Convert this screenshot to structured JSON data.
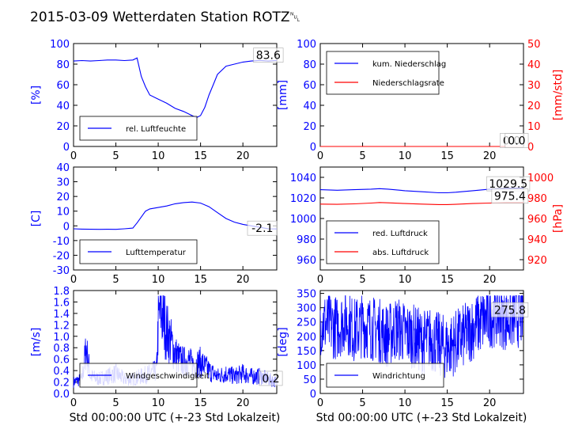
{
  "title": "2015-03-09 Wetterdaten Station ROTZ␀",
  "xlabel": "Std 00:00:00 UTC (+-23 Std Lokalzeit)",
  "colors": {
    "left": "#0000ff",
    "right": "#ff0000",
    "axis": "#000000"
  },
  "chart_data": [
    {
      "type": "line",
      "id": "humidity",
      "ylabel": "[%]",
      "xlim": [
        0,
        24
      ],
      "ylim": [
        0,
        100
      ],
      "xticks": [
        0,
        5,
        10,
        15,
        20
      ],
      "yticks": [
        0,
        20,
        40,
        60,
        80,
        100
      ],
      "legend_position": "lower-left",
      "series": [
        {
          "name": "rel. Luftfeuchte",
          "color": "#0000ff",
          "x": [
            0,
            1,
            2,
            3,
            4,
            5,
            6,
            7,
            7.5,
            8,
            8.5,
            9,
            10,
            11,
            12,
            13,
            14,
            14.5,
            15,
            15.5,
            16,
            16.5,
            17,
            18,
            19,
            20,
            21,
            22,
            23,
            24
          ],
          "y": [
            83,
            83.5,
            83,
            83.5,
            84,
            84,
            83.5,
            84,
            86,
            68,
            58,
            50,
            46,
            42,
            37,
            34,
            30,
            28,
            30,
            38,
            50,
            60,
            70,
            78,
            80,
            82,
            83,
            83.6,
            83,
            83.6
          ]
        }
      ],
      "annotations": [
        {
          "text": "83.6",
          "x": 23,
          "y": 88
        }
      ]
    },
    {
      "type": "line",
      "id": "precipitation",
      "ylabel": "[mm]",
      "ylabel_right": "[mm/std]",
      "xlim": [
        0,
        24
      ],
      "ylim": [
        0,
        100
      ],
      "ylim_right": [
        0,
        50
      ],
      "xticks": [
        0,
        5,
        10,
        15,
        20
      ],
      "yticks": [
        0,
        20,
        40,
        60,
        80,
        100
      ],
      "yticks_right": [
        0,
        10,
        20,
        30,
        40,
        50
      ],
      "legend_position": "upper-left",
      "series": [
        {
          "name": "kum. Niederschlag",
          "color": "#0000ff",
          "x": [
            0,
            24
          ],
          "y": [
            0,
            0
          ]
        },
        {
          "name": "Niederschlagsrate",
          "color": "#ff0000",
          "axis": "right",
          "x": [
            0,
            24
          ],
          "y": [
            0,
            0
          ]
        }
      ],
      "annotations": [
        {
          "text": "0.0",
          "x": 22.6,
          "y": 5
        },
        {
          "text": "0.0",
          "x": 23.2,
          "y": 5
        }
      ]
    },
    {
      "type": "line",
      "id": "temperature",
      "ylabel": "[C]",
      "xlim": [
        0,
        24
      ],
      "ylim": [
        -30,
        40
      ],
      "xticks": [
        0,
        5,
        10,
        15,
        20
      ],
      "yticks": [
        -30,
        -20,
        -10,
        0,
        10,
        20,
        30,
        40
      ],
      "legend_position": "lower-left",
      "series": [
        {
          "name": "Lufttemperatur",
          "color": "#0000ff",
          "x": [
            0,
            1,
            2,
            3,
            4,
            5,
            6,
            7,
            7.5,
            8,
            8.5,
            9,
            10,
            11,
            12,
            13,
            14,
            15,
            16,
            17,
            18,
            19,
            20,
            21,
            22,
            23,
            24
          ],
          "y": [
            -2,
            -2.2,
            -2.3,
            -2.4,
            -2.3,
            -2.4,
            -2,
            -1.5,
            2,
            6,
            10,
            11.5,
            12.5,
            13.5,
            15,
            15.8,
            16.2,
            15.5,
            13,
            9,
            5,
            2.5,
            1,
            0,
            -1,
            -2,
            -2.1
          ]
        }
      ],
      "annotations": [
        {
          "text": "-2.1",
          "x": 22.3,
          "y": -2.1
        }
      ]
    },
    {
      "type": "line",
      "id": "pressure",
      "ylabel": "",
      "ylabel_right": "[hPa]",
      "xlim": [
        0,
        24
      ],
      "ylim": [
        950,
        1050
      ],
      "ylim_right": [
        910,
        1010
      ],
      "xticks": [
        0,
        5,
        10,
        15,
        20
      ],
      "yticks": [
        960,
        980,
        1000,
        1020,
        1040
      ],
      "yticks_right": [
        920,
        940,
        960,
        980,
        1000
      ],
      "legend_position": "lower-left",
      "series": [
        {
          "name": "red. Luftdruck",
          "color": "#0000ff",
          "x": [
            0,
            2,
            4,
            6,
            7,
            8,
            10,
            12,
            14,
            15,
            16,
            18,
            20,
            22,
            24
          ],
          "y": [
            1028,
            1027.5,
            1028,
            1028.5,
            1029,
            1028.5,
            1027,
            1026,
            1025,
            1025,
            1025.5,
            1027,
            1028.5,
            1029.3,
            1029.5
          ]
        },
        {
          "name": "abs. Luftdruck",
          "color": "#ff0000",
          "axis": "right",
          "x": [
            0,
            2,
            4,
            6,
            7,
            8,
            10,
            12,
            14,
            15,
            16,
            18,
            20,
            22,
            24
          ],
          "y": [
            974,
            973.8,
            974.2,
            975,
            975.5,
            975.2,
            974.5,
            974,
            973.5,
            973.5,
            973.8,
            974.5,
            975,
            975.3,
            975.4
          ]
        }
      ],
      "annotations": [
        {
          "text": "1029.5",
          "x": 22.2,
          "y": 1033
        },
        {
          "text": "975.4",
          "x": 22.4,
          "y": 1021
        }
      ]
    },
    {
      "type": "line",
      "id": "wind_speed",
      "ylabel": "[m/s]",
      "xlim": [
        0,
        24
      ],
      "ylim": [
        0,
        1.8
      ],
      "xticks": [
        0,
        5,
        10,
        15,
        20
      ],
      "yticks": [
        0.0,
        0.2,
        0.4,
        0.6,
        0.8,
        1.0,
        1.2,
        1.4,
        1.6,
        1.8
      ],
      "legend_position": "lower-left",
      "series": [
        {
          "name": "Windgeschwindigkeit",
          "color": "#0000ff",
          "noisy": true,
          "x": [
            0,
            1,
            1.5,
            2,
            3,
            4,
            5,
            6,
            7,
            8,
            9,
            9.8,
            10,
            10.3,
            10.6,
            11,
            11.5,
            12,
            12.5,
            13,
            13.5,
            14,
            15,
            16,
            17,
            18,
            19,
            20,
            21,
            22,
            23,
            24
          ],
          "y": [
            0.2,
            0.25,
            0.8,
            0.3,
            0.25,
            0.3,
            0.35,
            0.25,
            0.25,
            0.3,
            0.35,
            0.4,
            1.2,
            1.5,
            1.3,
            1.1,
            0.9,
            0.7,
            0.6,
            0.55,
            0.6,
            0.5,
            0.55,
            0.4,
            0.3,
            0.35,
            0.3,
            0.35,
            0.3,
            0.3,
            0.25,
            0.2
          ]
        }
      ],
      "annotations": [
        {
          "text": "0.2",
          "x": 23.3,
          "y": 0.25
        }
      ]
    },
    {
      "type": "line",
      "id": "wind_direction",
      "ylabel": "[deg]",
      "xlim": [
        0,
        24
      ],
      "ylim": [
        0,
        360
      ],
      "xticks": [
        0,
        5,
        10,
        15,
        20
      ],
      "yticks": [
        0,
        50,
        100,
        150,
        200,
        250,
        300,
        350
      ],
      "legend_position": "lower-left",
      "series": [
        {
          "name": "Windrichtung",
          "color": "#0000ff",
          "noisy": true,
          "x": [
            0,
            1,
            2,
            3,
            4,
            5,
            6,
            7,
            8,
            9,
            10,
            11,
            12,
            13,
            14,
            15,
            16,
            17,
            18,
            19,
            20,
            21,
            22,
            23,
            24
          ],
          "y": [
            250,
            240,
            230,
            260,
            220,
            240,
            230,
            220,
            200,
            230,
            210,
            200,
            180,
            190,
            170,
            160,
            180,
            200,
            230,
            250,
            270,
            280,
            260,
            270,
            275.8
          ]
        }
      ],
      "annotations": [
        {
          "text": "275.8",
          "x": 22.4,
          "y": 290
        }
      ]
    }
  ]
}
